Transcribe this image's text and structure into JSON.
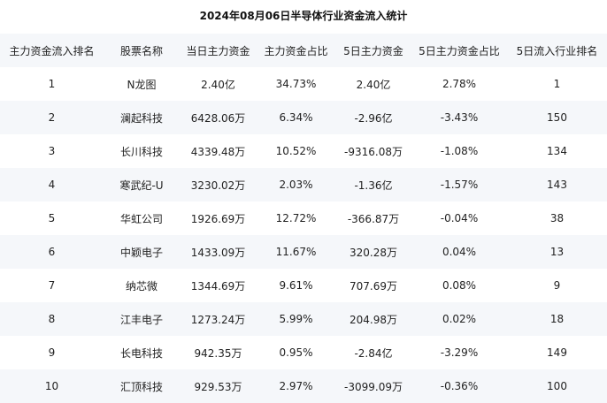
{
  "title": "2024年08月06日半导体行业资金流入统计",
  "columns": [
    "主力资金流入排名",
    "股票名称",
    "当日主力资金",
    "主力资金占比",
    "5日主力资金",
    "5日主力资金占比",
    "5日流入行业排名"
  ],
  "rows": [
    [
      "1",
      "N龙图",
      "2.40亿",
      "34.73%",
      "2.40亿",
      "2.78%",
      "1"
    ],
    [
      "2",
      "澜起科技",
      "6428.06万",
      "6.34%",
      "-2.96亿",
      "-3.43%",
      "150"
    ],
    [
      "3",
      "长川科技",
      "4339.48万",
      "10.52%",
      "-9316.08万",
      "-1.08%",
      "134"
    ],
    [
      "4",
      "寒武纪-U",
      "3230.02万",
      "2.03%",
      "-1.36亿",
      "-1.57%",
      "143"
    ],
    [
      "5",
      "华虹公司",
      "1926.69万",
      "12.72%",
      "-366.87万",
      "-0.04%",
      "38"
    ],
    [
      "6",
      "中颖电子",
      "1433.09万",
      "11.67%",
      "320.28万",
      "0.04%",
      "13"
    ],
    [
      "7",
      "纳芯微",
      "1344.69万",
      "9.61%",
      "707.69万",
      "0.08%",
      "9"
    ],
    [
      "8",
      "江丰电子",
      "1273.24万",
      "5.99%",
      "204.98万",
      "0.02%",
      "18"
    ],
    [
      "9",
      "长电科技",
      "942.35万",
      "0.95%",
      "-2.84亿",
      "-3.29%",
      "149"
    ],
    [
      "10",
      "汇顶科技",
      "929.53万",
      "2.97%",
      "-3099.09万",
      "-0.36%",
      "100"
    ]
  ]
}
